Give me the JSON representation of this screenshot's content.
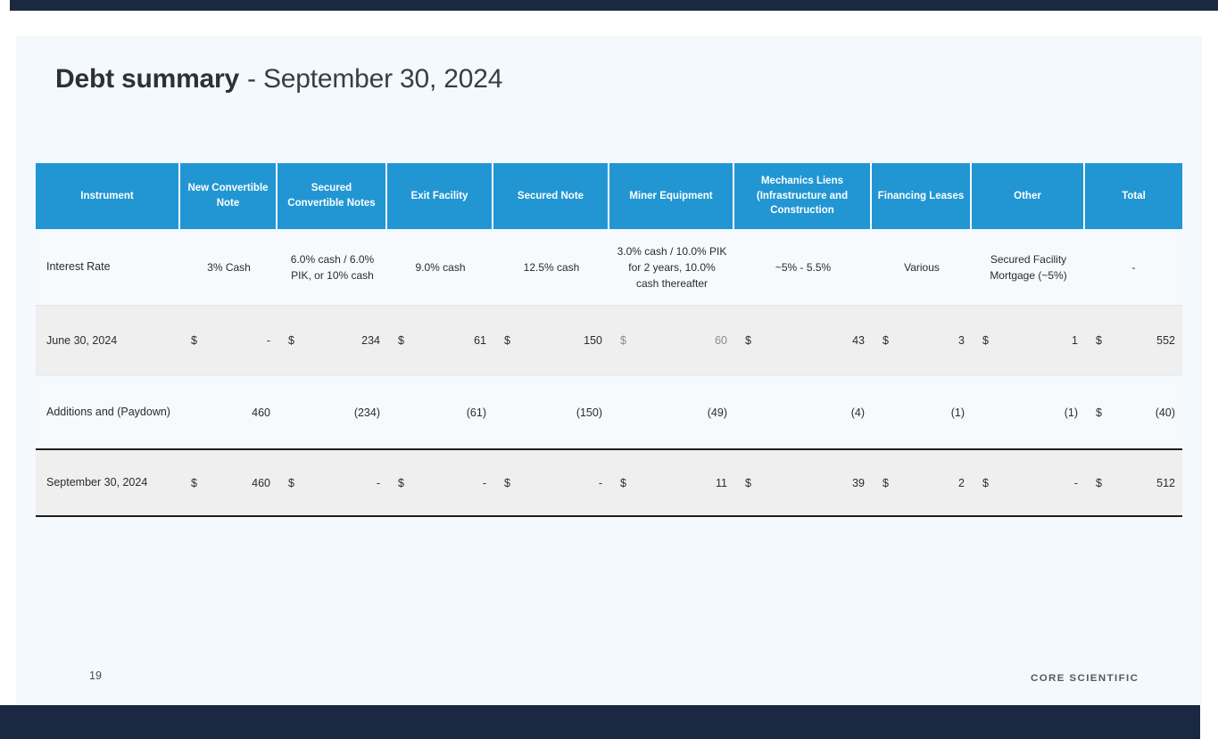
{
  "slide": {
    "title_bold": "Debt summary",
    "title_rest": "- September 30, 2024",
    "page_number": "19",
    "logo_text": "CORE SCIENTIFIC"
  },
  "colors": {
    "header_bg": "#2196d3",
    "accent_bar": "#1a2841",
    "slide_bg": "#f3f9fd",
    "alt_row_bg": "#efeff0",
    "muted_value": "#8a8a8a"
  },
  "table": {
    "columns": [
      "Instrument",
      "New Convertible Note",
      "Secured Convertible Notes",
      "Exit Facility",
      "Secured Note",
      "Miner Equipment",
      "Mechanics Liens (Infrastructure and Construction",
      "Financing Leases",
      "Other",
      "Total"
    ],
    "rows": [
      {
        "name": "interest-rate",
        "label": "Interest Rate",
        "kind": "text",
        "cells": [
          "3% Cash",
          "6.0% cash / 6.0% PIK, or 10% cash",
          "9.0% cash",
          "12.5% cash",
          "3.0% cash / 10.0% PIK for 2 years, 10.0% cash thereafter",
          "~5% - 5.5%",
          "Various",
          "Secured Facility Mortgage (~5%)",
          "-"
        ]
      },
      {
        "name": "june-30-2024",
        "label": "June 30, 2024",
        "kind": "money",
        "cells": [
          {
            "cur": "$",
            "val": "-"
          },
          {
            "cur": "$",
            "val": "234"
          },
          {
            "cur": "$",
            "val": "61"
          },
          {
            "cur": "$",
            "val": "150"
          },
          {
            "cur": "$",
            "val": "60",
            "muted": true
          },
          {
            "cur": "$",
            "val": "43"
          },
          {
            "cur": "$",
            "val": "3"
          },
          {
            "cur": "$",
            "val": "1"
          },
          {
            "cur": "$",
            "val": "552"
          }
        ]
      },
      {
        "name": "additions-and-paydown",
        "label": "Additions and (Paydown)",
        "kind": "money",
        "cells": [
          {
            "cur": "",
            "val": "460"
          },
          {
            "cur": "",
            "val": "(234)"
          },
          {
            "cur": "",
            "val": "(61)"
          },
          {
            "cur": "",
            "val": "(150)"
          },
          {
            "cur": "",
            "val": "(49)"
          },
          {
            "cur": "",
            "val": "(4)"
          },
          {
            "cur": "",
            "val": "(1)"
          },
          {
            "cur": "",
            "val": "(1)"
          },
          {
            "cur": "$",
            "val": "(40)"
          }
        ]
      },
      {
        "name": "september-30-2024",
        "label": "September 30, 2024",
        "kind": "money",
        "cells": [
          {
            "cur": "$",
            "val": "460"
          },
          {
            "cur": "$",
            "val": "-"
          },
          {
            "cur": "$",
            "val": "-"
          },
          {
            "cur": "$",
            "val": "-"
          },
          {
            "cur": "$",
            "val": "11"
          },
          {
            "cur": "$",
            "val": "39"
          },
          {
            "cur": "$",
            "val": "2"
          },
          {
            "cur": "$",
            "val": "-"
          },
          {
            "cur": "$",
            "val": "512"
          }
        ]
      }
    ]
  }
}
